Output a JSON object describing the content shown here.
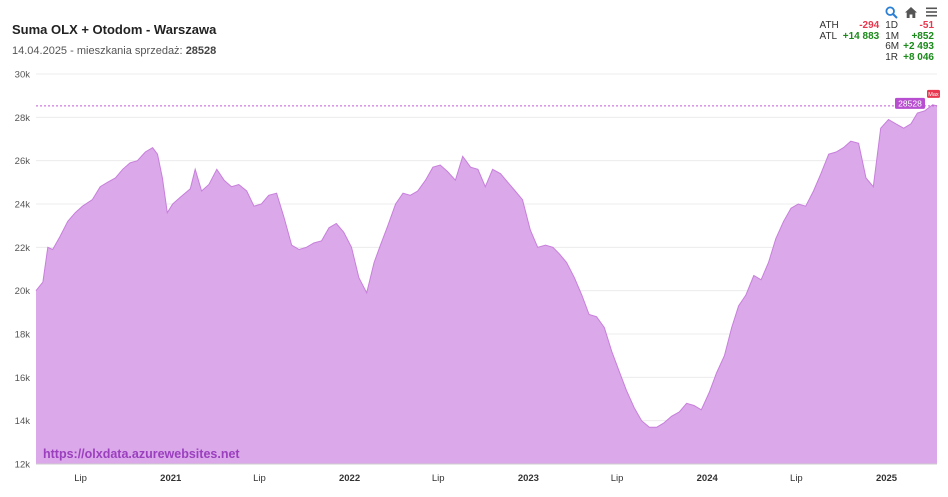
{
  "title": "Suma OLX + Otodom - Warszawa",
  "subtitle": {
    "date": "14.04.2025",
    "sep": " - ",
    "label": "mieszkania sprzedaż:",
    "value": "28528"
  },
  "toolbar": {
    "zoom_icon": "zoom-icon",
    "home_icon": "home-icon",
    "menu_icon": "menu-icon"
  },
  "stats": {
    "ath_label": "ATH",
    "ath_value": "-294",
    "atl_label": "ATL",
    "atl_value": "+14 883",
    "d1_label": "1D",
    "d1_value": "-51",
    "m1_label": "1M",
    "m1_value": "+852",
    "m6_label": "6M",
    "m6_value": "+2 493",
    "y1_label": "1R",
    "y1_value": "+8 046"
  },
  "watermark": "https://olxdata.azurewebsites.net",
  "colors": {
    "fill": "#dba8ea",
    "line": "#c77fdb",
    "ref_line": "#c45ad6",
    "badge": "#b84fd0",
    "max_badge": "#e8374e"
  },
  "chart_data": {
    "type": "area",
    "ylim": [
      12000,
      30000
    ],
    "yticks": [
      "12k",
      "14k",
      "16k",
      "18k",
      "20k",
      "22k",
      "24k",
      "26k",
      "28k",
      "30k"
    ],
    "xlim": [
      "2020-04-01",
      "2025-04-14"
    ],
    "xticks": [
      {
        "date": "2020-07-01",
        "label": "Lip",
        "bold": false
      },
      {
        "date": "2021-01-01",
        "label": "2021",
        "bold": true
      },
      {
        "date": "2021-07-01",
        "label": "Lip",
        "bold": false
      },
      {
        "date": "2022-01-01",
        "label": "2022",
        "bold": true
      },
      {
        "date": "2022-07-01",
        "label": "Lip",
        "bold": false
      },
      {
        "date": "2023-01-01",
        "label": "2023",
        "bold": true
      },
      {
        "date": "2023-07-01",
        "label": "Lip",
        "bold": false
      },
      {
        "date": "2024-01-01",
        "label": "2024",
        "bold": true
      },
      {
        "date": "2024-07-01",
        "label": "Lip",
        "bold": false
      },
      {
        "date": "2025-01-01",
        "label": "2025",
        "bold": true
      }
    ],
    "last_value": "28528",
    "max_label": "Max",
    "reference_line": 28528,
    "series": [
      {
        "x": [
          "2020-04-01",
          "2020-04-15",
          "2020-04-25",
          "2020-05-05",
          "2020-05-20",
          "2020-06-05",
          "2020-06-20",
          "2020-07-05",
          "2020-07-25",
          "2020-08-10",
          "2020-08-25",
          "2020-09-10",
          "2020-09-25",
          "2020-10-10",
          "2020-10-25",
          "2020-11-10",
          "2020-11-25",
          "2020-12-05",
          "2020-12-15",
          "2020-12-25",
          "2021-01-05",
          "2021-01-20",
          "2021-02-10",
          "2021-02-20",
          "2021-03-05",
          "2021-03-20",
          "2021-04-05",
          "2021-04-20",
          "2021-05-05",
          "2021-05-20",
          "2021-06-05",
          "2021-06-20",
          "2021-07-05",
          "2021-07-20",
          "2021-08-05",
          "2021-08-20",
          "2021-09-05",
          "2021-09-20",
          "2021-10-05",
          "2021-10-20",
          "2021-11-05",
          "2021-11-20",
          "2021-12-05",
          "2021-12-20",
          "2022-01-05",
          "2022-01-20",
          "2022-02-05",
          "2022-02-20",
          "2022-03-05",
          "2022-03-20",
          "2022-04-05",
          "2022-04-20",
          "2022-05-05",
          "2022-05-20",
          "2022-06-05",
          "2022-06-20",
          "2022-07-05",
          "2022-07-20",
          "2022-08-05",
          "2022-08-20",
          "2022-09-05",
          "2022-09-20",
          "2022-10-05",
          "2022-10-20",
          "2022-11-05",
          "2022-11-20",
          "2022-12-05",
          "2022-12-20",
          "2023-01-05",
          "2023-01-20",
          "2023-02-05",
          "2023-02-20",
          "2023-03-05",
          "2023-03-20",
          "2023-04-05",
          "2023-04-20",
          "2023-05-05",
          "2023-05-20",
          "2023-06-05",
          "2023-06-20",
          "2023-07-05",
          "2023-07-20",
          "2023-08-05",
          "2023-08-20",
          "2023-09-05",
          "2023-09-20",
          "2023-10-05",
          "2023-10-20",
          "2023-11-05",
          "2023-11-20",
          "2023-12-05",
          "2023-12-20",
          "2024-01-05",
          "2024-01-20",
          "2024-02-05",
          "2024-02-20",
          "2024-03-05",
          "2024-03-20",
          "2024-04-05",
          "2024-04-20",
          "2024-05-05",
          "2024-05-20",
          "2024-06-05",
          "2024-06-20",
          "2024-07-05",
          "2024-07-20",
          "2024-08-05",
          "2024-08-20",
          "2024-09-05",
          "2024-09-20",
          "2024-10-05",
          "2024-10-20",
          "2024-11-05",
          "2024-11-20",
          "2024-12-05",
          "2024-12-20",
          "2025-01-05",
          "2025-01-20",
          "2025-02-05",
          "2025-02-20",
          "2025-03-05",
          "2025-03-20",
          "2025-04-05",
          "2025-04-14"
        ],
        "y": [
          20000,
          20400,
          22000,
          21900,
          22500,
          23200,
          23600,
          23900,
          24200,
          24800,
          25000,
          25200,
          25600,
          25900,
          26000,
          26400,
          26600,
          26300,
          25200,
          23600,
          24000,
          24300,
          24700,
          25600,
          24600,
          24900,
          25600,
          25100,
          24800,
          24900,
          24600,
          23900,
          24000,
          24400,
          24500,
          23400,
          22100,
          21900,
          22000,
          22200,
          22300,
          22900,
          23100,
          22700,
          22000,
          20600,
          19900,
          21300,
          22100,
          23000,
          24000,
          24500,
          24400,
          24600,
          25100,
          25700,
          25800,
          25500,
          25100,
          26200,
          25700,
          25600,
          24800,
          25600,
          25400,
          25000,
          24600,
          24200,
          22800,
          22000,
          22100,
          22000,
          21700,
          21300,
          20600,
          19800,
          18900,
          18800,
          18300,
          17200,
          16300,
          15400,
          14600,
          14000,
          13700,
          13700,
          13900,
          14200,
          14400,
          14800,
          14700,
          14500,
          15300,
          16200,
          17000,
          18300,
          19300,
          19800,
          20700,
          20500,
          21300,
          22400,
          23200,
          23800,
          24000,
          23900,
          24600,
          25400,
          26300,
          26400,
          26600,
          26900,
          26800,
          25200,
          24800,
          27500,
          27900,
          27700,
          27500,
          27700,
          28200,
          28300,
          28580,
          28528
        ]
      }
    ]
  }
}
